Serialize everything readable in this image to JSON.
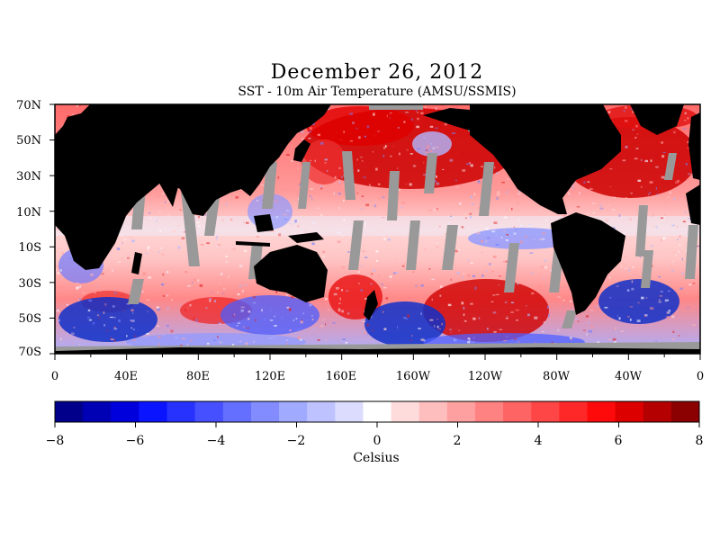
{
  "title": "December 26, 2012",
  "subtitle": "SST - 10m Air Temperature (AMSU/SSMIS)",
  "lat_labels": [
    "70N",
    "50N",
    "30N",
    "10N",
    "10S",
    "30S",
    "50S",
    "70S"
  ],
  "lon_labels": [
    "0",
    "40E",
    "80E",
    "120E",
    "160E",
    "160W",
    "120W",
    "80W",
    "40W",
    "0"
  ],
  "colorbar": {
    "unit": "Celsius",
    "tick_labels": [
      "−8",
      "−6",
      "−4",
      "−2",
      "0",
      "2",
      "4",
      "6",
      "8"
    ],
    "min": -8,
    "max": 8,
    "colors": [
      "#00008b",
      "#0000b4",
      "#0000dc",
      "#0a14ff",
      "#2832ff",
      "#4650ff",
      "#646eff",
      "#828cff",
      "#a0aaff",
      "#bec3ff",
      "#dcdcff",
      "#ffffff",
      "#ffdcdc",
      "#ffbebe",
      "#ffa0a0",
      "#ff8282",
      "#ff6464",
      "#ff4646",
      "#ff2828",
      "#ff0a0a",
      "#dc0000",
      "#b40000",
      "#8b0000"
    ]
  },
  "colors": {
    "land": "#000000",
    "no_data": "#999999",
    "warm": "#d70000",
    "cold": "#1020c8"
  }
}
